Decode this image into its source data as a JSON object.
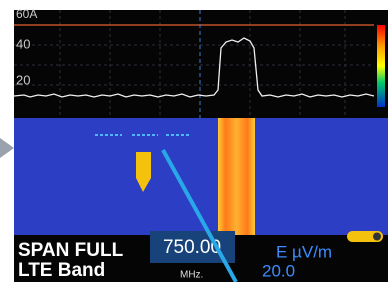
{
  "screen": {
    "scale_labels": [
      "60A",
      "40",
      "20"
    ]
  },
  "status": {
    "span": "SPAN FULL",
    "band": "LTE Band",
    "frequency": "750.00",
    "frequency_unit": "MHz.",
    "level_unit": "E µV/m",
    "level": "20.0"
  }
}
